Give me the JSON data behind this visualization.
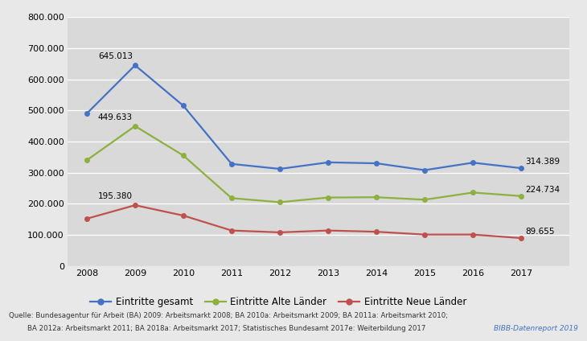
{
  "years": [
    2008,
    2009,
    2010,
    2011,
    2012,
    2013,
    2014,
    2015,
    2016,
    2017
  ],
  "gesamt": [
    490000,
    645013,
    515000,
    328000,
    312000,
    333000,
    330000,
    308000,
    332000,
    314389
  ],
  "alte_laender": [
    340000,
    449633,
    355000,
    218000,
    205000,
    220000,
    221000,
    213000,
    236000,
    224734
  ],
  "neue_laender": [
    152000,
    195380,
    162000,
    114000,
    108000,
    114000,
    110000,
    101000,
    101000,
    89655
  ],
  "color_gesamt": "#4472C4",
  "color_alte": "#8DB03F",
  "color_neue": "#C0504D",
  "plot_bg_color": "#D9D9D9",
  "fig_bg_color": "#E8E8E8",
  "ylim_min": 0,
  "ylim_max": 800000,
  "yticks": [
    0,
    100000,
    200000,
    300000,
    400000,
    500000,
    600000,
    700000,
    800000
  ],
  "legend_gesamt": "Eintritte gesamt",
  "legend_alte": "Eintritte Alte Länder",
  "legend_neue": "Eintritte Neue Länder",
  "ann_2009_gesamt": "645.013",
  "ann_2009_alte": "449.633",
  "ann_2009_neue": "195.380",
  "ann_2017_gesamt": "314.389",
  "ann_2017_alte": "224.734",
  "ann_2017_neue": "89.655",
  "source_line1": "Quelle: Bundesagentur für Arbeit (BA) 2009: Arbeitsmarkt 2008; BA 2010a: Arbeitsmarkt 2009; BA 2011a: Arbeitsmarkt 2010;",
  "source_line2": "BA 2012a: Arbeitsmarkt 2011; BA 2018a: Arbeitsmarkt 2017; Statistisches Bundesamt 2017e: Weiterbildung 2017",
  "bibb_text": "BIBB-Datenreport 2019",
  "xlim_left": 2007.6,
  "xlim_right": 2018.0
}
